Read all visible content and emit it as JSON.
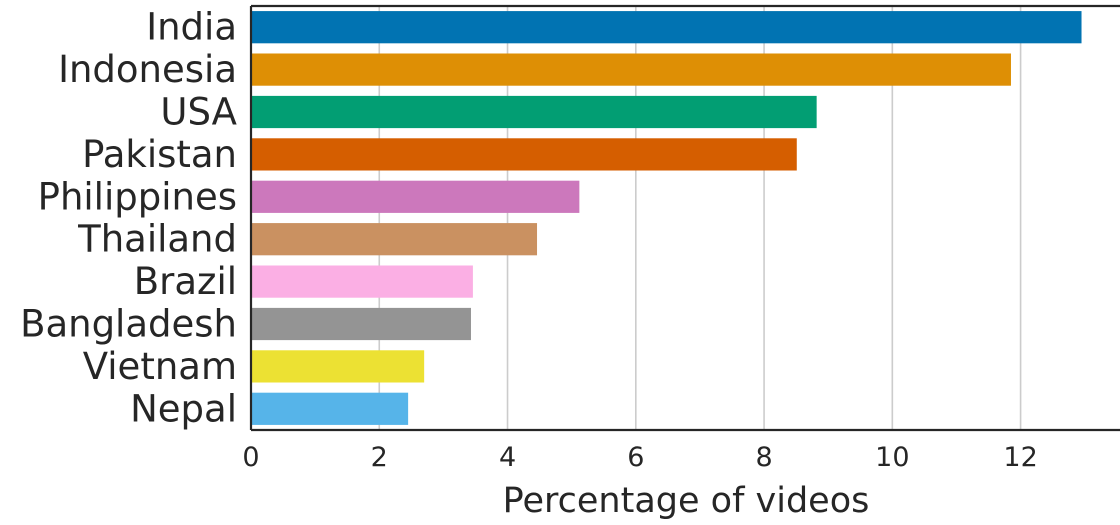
{
  "chart_data": {
    "type": "bar",
    "orientation": "horizontal",
    "categories": [
      "India",
      "Indonesia",
      "USA",
      "Pakistan",
      "Philippines",
      "Thailand",
      "Brazil",
      "Bangladesh",
      "Vietnam",
      "Nepal"
    ],
    "values": [
      12.95,
      11.85,
      8.82,
      8.51,
      5.12,
      4.46,
      3.46,
      3.43,
      2.7,
      2.45
    ],
    "colors": [
      "#0173b2",
      "#de8f05",
      "#029e73",
      "#d55e00",
      "#cc78bc",
      "#ca9161",
      "#fbafe4",
      "#949494",
      "#ece133",
      "#56b4e9"
    ],
    "xlabel": "Percentage of videos",
    "ylabel": "",
    "xlim": [
      0,
      13.55
    ],
    "x_ticks": [
      0,
      2,
      4,
      6,
      8,
      10,
      12
    ],
    "grid": "vertical"
  }
}
